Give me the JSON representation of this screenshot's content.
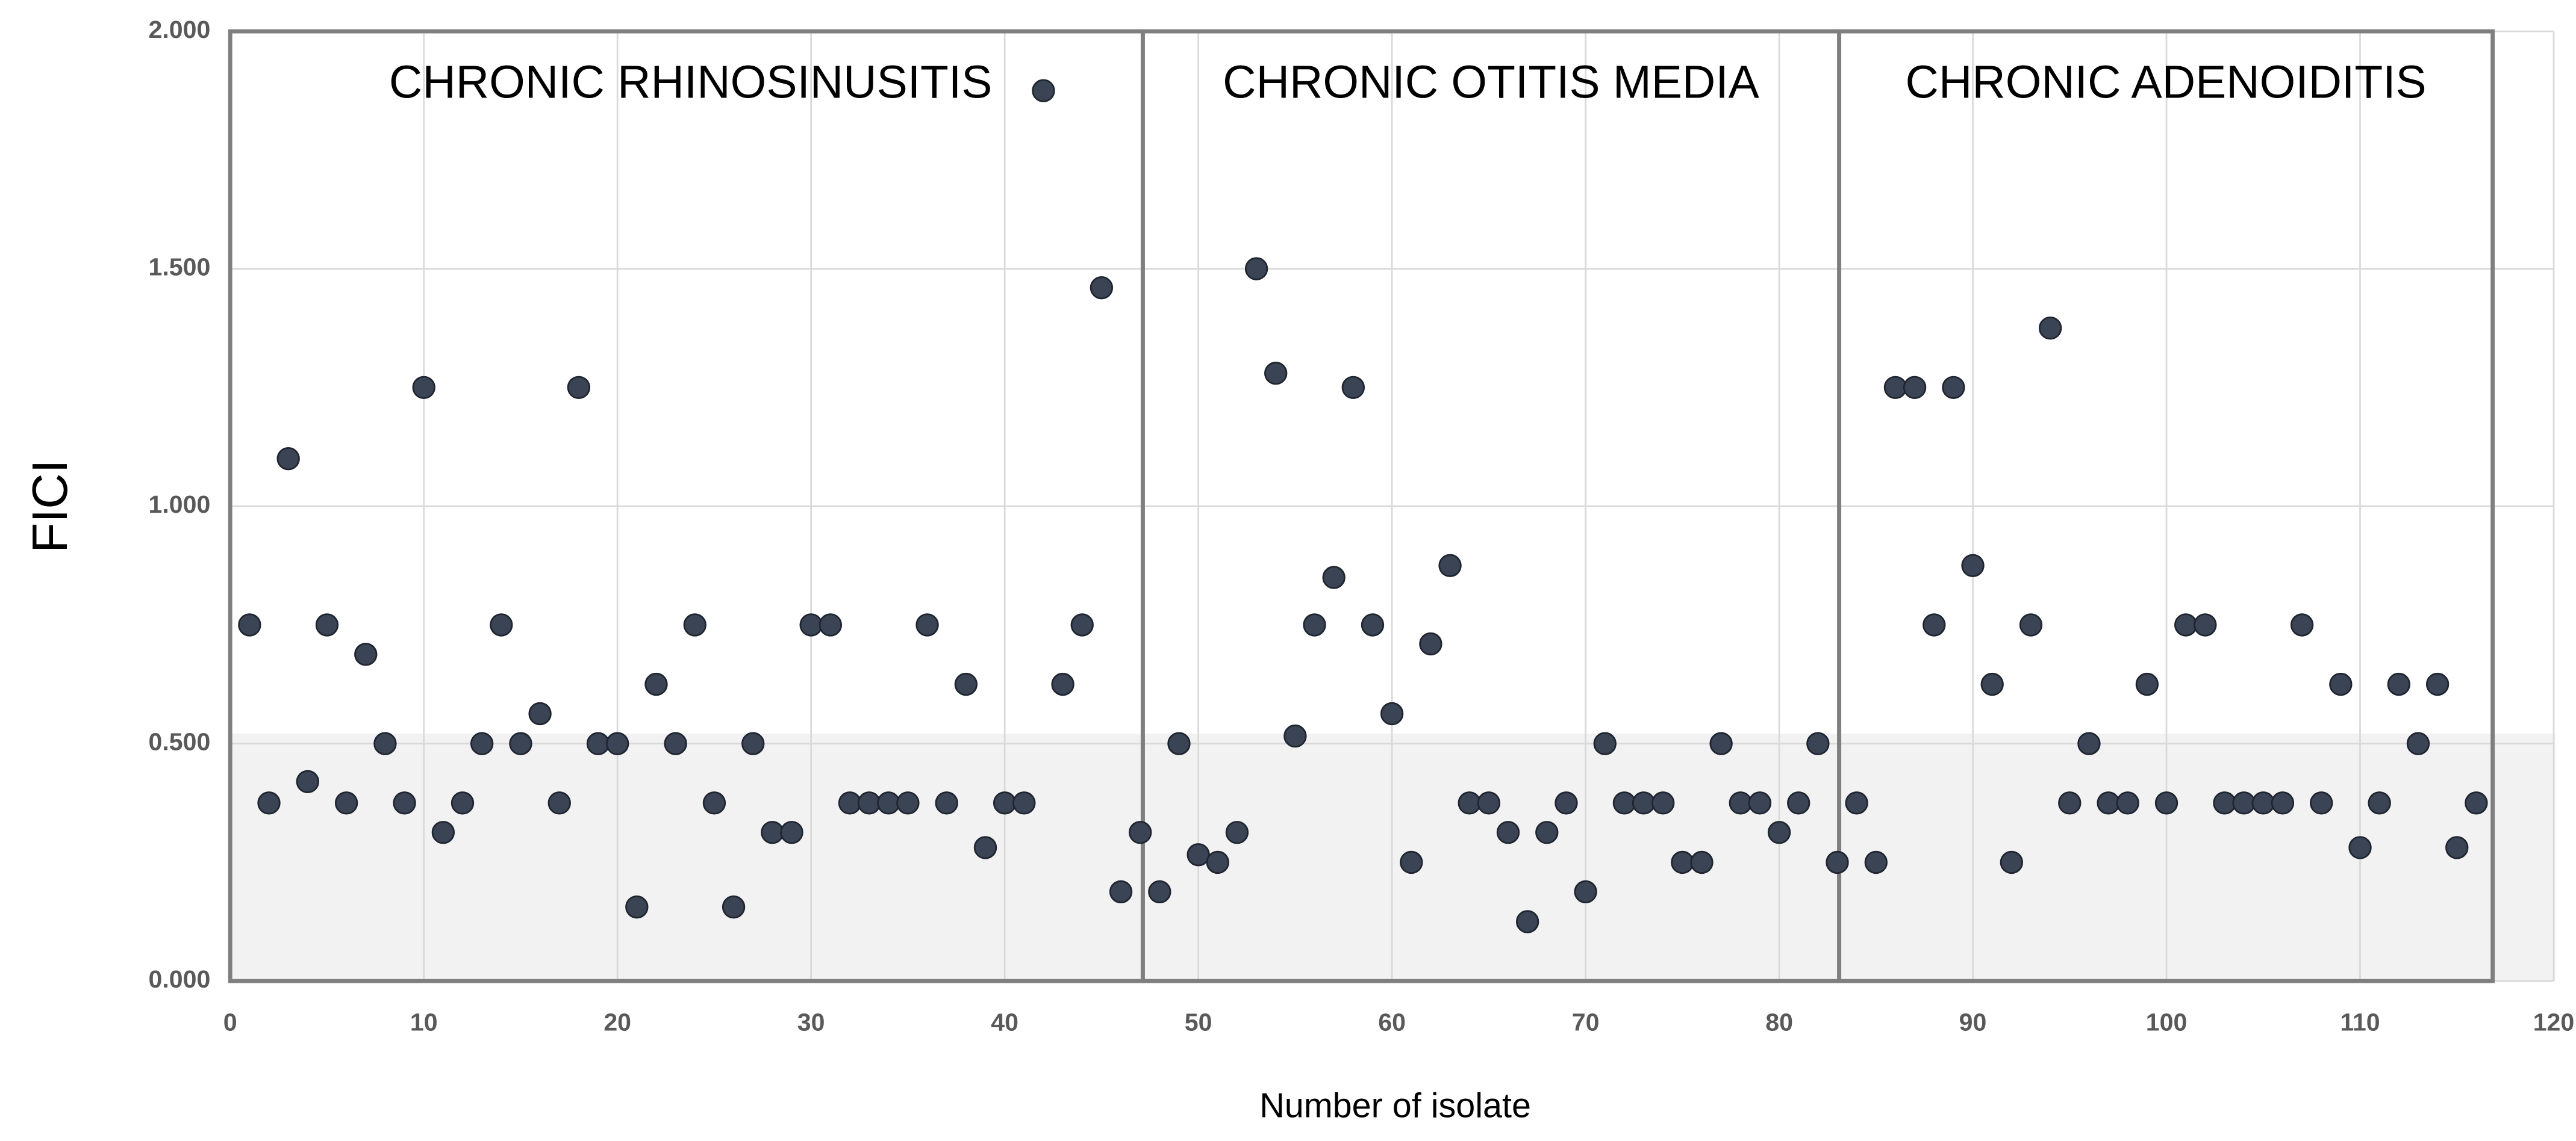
{
  "chart_data": {
    "type": "scatter",
    "y_label": "FICI",
    "x_label": "Number of isolate",
    "annotations": [
      "CHRONIC RHINOSINUSITIS",
      "CHRONIC OTITIS MEDIA",
      "CHRONIC ADENOIDITIS"
    ],
    "color": "#3b4454",
    "grid": true,
    "xlim": [
      0,
      120
    ],
    "xticks": [
      0,
      10,
      20,
      30,
      40,
      50,
      60,
      70,
      80,
      90,
      100,
      110,
      120
    ],
    "ylim": [
      0,
      2
    ],
    "yticks": [
      {
        "value": 0,
        "label": "0.000"
      },
      {
        "value": 0.5,
        "label": "0.500"
      },
      {
        "value": 1,
        "label": "1.000"
      },
      {
        "value": 1.5,
        "label": "1.500"
      },
      {
        "value": 2,
        "label": "2.000"
      }
    ],
    "x": [
      1,
      2,
      3,
      4,
      5,
      6,
      7,
      8,
      9,
      10,
      11,
      12,
      13,
      14,
      15,
      16,
      17,
      18,
      19,
      20,
      21,
      22,
      23,
      24,
      25,
      26,
      27,
      28,
      29,
      30,
      31,
      32,
      33,
      34,
      35,
      36,
      37,
      38,
      39,
      40,
      41,
      42,
      43,
      44,
      45,
      46,
      47,
      48,
      49,
      50,
      51,
      52,
      53,
      54,
      55,
      56,
      57,
      58,
      59,
      60,
      61,
      62,
      63,
      64,
      65,
      66,
      67,
      68,
      69,
      70,
      71,
      72,
      73,
      74,
      75,
      76,
      77,
      78,
      79,
      80,
      81,
      82,
      83,
      84,
      85,
      86,
      87,
      88,
      89,
      90,
      91,
      92,
      93,
      94,
      95,
      96,
      97,
      98,
      99,
      100,
      101,
      102,
      103,
      104,
      105,
      106,
      107,
      108,
      109,
      110,
      111,
      112,
      113,
      114,
      115,
      116
    ],
    "values": [
      0.75,
      0.375,
      1.1,
      0.42,
      0.75,
      0.375,
      0.688,
      0.5,
      0.375,
      1.25,
      0.313,
      0.375,
      0.5,
      0.75,
      0.5,
      0.563,
      0.375,
      1.25,
      0.5,
      0.5,
      0.156,
      0.625,
      0.5,
      0.75,
      0.375,
      0.156,
      0.5,
      0.313,
      0.313,
      0.75,
      0.75,
      0.375,
      0.375,
      0.375,
      0.375,
      0.75,
      0.375,
      0.625,
      0.281,
      0.375,
      0.375,
      1.875,
      0.625,
      0.75,
      1.46,
      0.188,
      0.313,
      0.188,
      0.5,
      0.266,
      0.25,
      0.313,
      1.5,
      1.28,
      0.516,
      0.75,
      0.85,
      1.25,
      0.75,
      0.563,
      0.25,
      0.71,
      0.875,
      0.375,
      0.375,
      0.313,
      0.125,
      0.313,
      0.375,
      0.188,
      0.5,
      0.375,
      0.375,
      0.375,
      0.25,
      0.25,
      0.5,
      0.375,
      0.375,
      0.313,
      0.375,
      0.5,
      0.25,
      0.375,
      0.25,
      1.25,
      1.25,
      0.75,
      1.25,
      0.875,
      0.625,
      0.25,
      0.75,
      1.375,
      0.375,
      0.5,
      0.375,
      0.375,
      0.625,
      0.375,
      0.75,
      0.75,
      0.375,
      0.375,
      0.375,
      0.375,
      0.75,
      0.375,
      0.625,
      0.281,
      0.375,
      0.625,
      0.5,
      0.625,
      0.281,
      0.375
    ]
  }
}
